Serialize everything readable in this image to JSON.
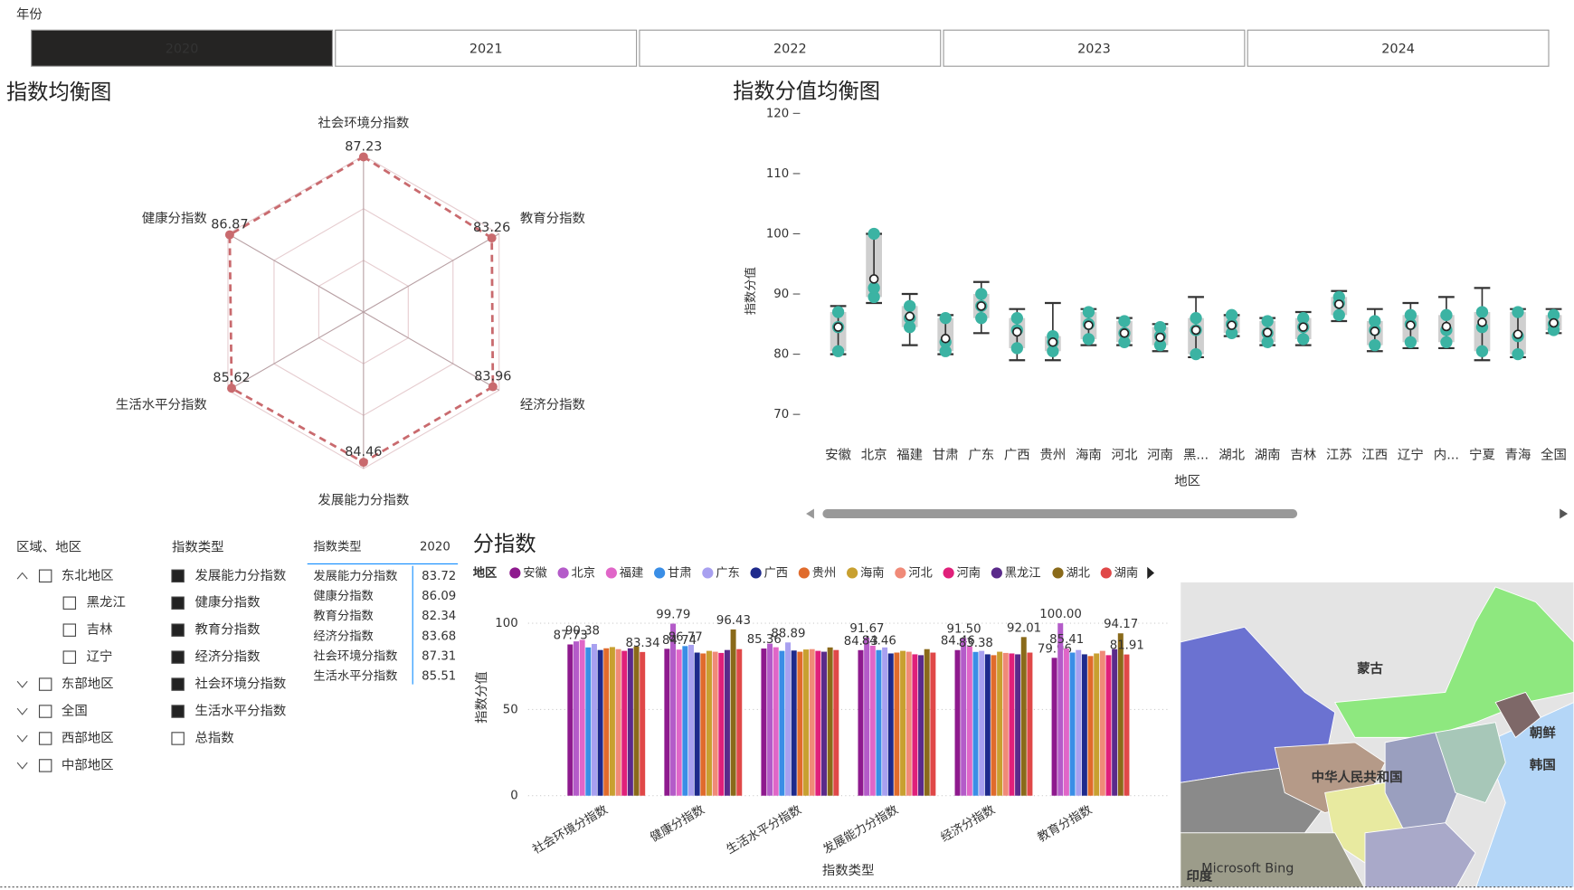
{
  "year_slicer": {
    "label": "年份",
    "options": [
      "2020",
      "2021",
      "2022",
      "2023",
      "2024"
    ]
  },
  "region_filter": {
    "title": "区域、地区",
    "items": [
      {
        "label": "东北地区",
        "expanded": true,
        "children": [
          "黑龙江",
          "吉林",
          "辽宁"
        ]
      },
      {
        "label": "东部地区",
        "expanded": false
      },
      {
        "label": "全国",
        "expanded": false
      },
      {
        "label": "西部地区",
        "expanded": false
      },
      {
        "label": "中部地区",
        "expanded": false
      }
    ]
  },
  "index_filter": {
    "title": "指数类型",
    "items": [
      {
        "label": "发展能力分指数",
        "checked": true
      },
      {
        "label": "健康分指数",
        "checked": true
      },
      {
        "label": "教育分指数",
        "checked": true
      },
      {
        "label": "经济分指数",
        "checked": true
      },
      {
        "label": "社会环境分指数",
        "checked": true
      },
      {
        "label": "生活水平分指数",
        "checked": true
      },
      {
        "label": "总指数",
        "checked": false
      }
    ]
  },
  "table": {
    "headers": [
      "指数类型",
      "2020"
    ],
    "rows": [
      [
        "发展能力分指数",
        83.72
      ],
      [
        "健康分指数",
        86.09
      ],
      [
        "教育分指数",
        82.34
      ],
      [
        "经济分指数",
        83.68
      ],
      [
        "社会环境分指数",
        87.31
      ],
      [
        "生活水平分指数",
        85.51
      ]
    ]
  },
  "map": {
    "labels": [
      "蒙古",
      "朝鲜",
      "韩国",
      "中华人民共和国",
      "印度"
    ],
    "attribution": "Microsoft Bing"
  },
  "chart_data": [
    {
      "type": "radar",
      "title": "指数均衡图",
      "categories": [
        "社会环境分指数",
        "教育分指数",
        "经济分指数",
        "发展能力分指数",
        "生活水平分指数",
        "健康分指数"
      ],
      "values": [
        87.23,
        83.26,
        83.96,
        84.46,
        85.62,
        86.87
      ],
      "color": "#c96a6e",
      "rlim": [
        0,
        88
      ],
      "grid": true
    },
    {
      "type": "box",
      "title": "指数分值均衡图",
      "y_label": "指数分值",
      "x_label": "地区",
      "categories": [
        "安徽",
        "北京",
        "福建",
        "甘肃",
        "广东",
        "广西",
        "贵州",
        "海南",
        "河北",
        "河南",
        "黑...",
        "湖北",
        "湖南",
        "吉林",
        "江苏",
        "江西",
        "辽宁",
        "内...",
        "宁夏",
        "青海",
        "全国"
      ],
      "min": [
        80,
        88.5,
        81.5,
        80,
        83.5,
        79,
        79,
        81.5,
        81.5,
        80.5,
        79.5,
        83,
        81.5,
        81.5,
        85.5,
        80.5,
        81,
        81,
        79,
        79.5,
        83.5
      ],
      "q1": [
        80.5,
        89.5,
        84.5,
        80.5,
        86,
        81,
        80.5,
        82.5,
        82,
        81.5,
        80,
        83.5,
        82,
        82.5,
        86.5,
        81.5,
        82,
        82,
        80.5,
        80,
        84
      ],
      "median": [
        84.5,
        91,
        86,
        82,
        88,
        84,
        82,
        85,
        83.5,
        83,
        84,
        85,
        83.5,
        84.5,
        88.5,
        84,
        85,
        84,
        84.5,
        83,
        85
      ],
      "q3": [
        87,
        100,
        88,
        86,
        90,
        86,
        83,
        87,
        85.5,
        84.5,
        86,
        86.5,
        85.5,
        86,
        89.5,
        85.5,
        86.5,
        86.5,
        87,
        87,
        86.5
      ],
      "max": [
        88,
        100,
        90,
        86.5,
        92,
        87.5,
        88.5,
        87.5,
        86,
        85,
        89.5,
        86.5,
        86,
        87,
        90.5,
        87.5,
        88.5,
        89.5,
        91,
        87.5,
        87.5
      ],
      "mean": [
        84.5,
        92.5,
        86.3,
        82.6,
        88,
        83.7,
        82,
        84.8,
        83.5,
        82.8,
        84,
        84.8,
        83.6,
        84.5,
        88.3,
        83.8,
        84.8,
        84.6,
        85.3,
        83.3,
        85.2
      ],
      "color": "#3bb3a3",
      "ylim": [
        65,
        120
      ],
      "yticks": [
        70,
        80,
        90,
        100,
        110,
        120
      ]
    },
    {
      "type": "bar",
      "title": "分指数",
      "legend_title": "地区",
      "y_label": "指数分值",
      "x_label": "指数类型",
      "categories": [
        "社会环境分指数",
        "健康分指数",
        "生活水平分指数",
        "发展能力分指数",
        "经济分指数",
        "教育分指数"
      ],
      "ylim": [
        0,
        110
      ],
      "yticks": [
        0,
        50,
        100
      ],
      "grid": true,
      "series": [
        {
          "name": "安徽",
          "color": "#8e1a8e",
          "values": [
            87.73,
            85.2,
            85.36,
            84.43,
            84.46,
            79.96
          ],
          "value_labels": [
            "87.73",
            null,
            "85.36",
            "84.43",
            "84.46",
            "79.96"
          ]
        },
        {
          "name": "北京",
          "color": "#b45bc9",
          "values": [
            89.5,
            99.79,
            88.2,
            91.67,
            91.5,
            100
          ],
          "value_labels": [
            null,
            "99.79",
            null,
            "91.67",
            "91.50",
            "100.00"
          ]
        },
        {
          "name": "福建",
          "color": "#e066c8",
          "values": [
            90.38,
            84.74,
            86.1,
            87,
            86.5,
            85.41
          ],
          "value_labels": [
            "90.38",
            "84.74",
            null,
            null,
            null,
            "85.41"
          ]
        },
        {
          "name": "甘肃",
          "color": "#3a8ee6",
          "values": [
            86,
            86.77,
            84,
            84.46,
            83.38,
            83
          ],
          "value_labels": [
            null,
            "86.77",
            null,
            "84.46",
            "83.38",
            null
          ]
        },
        {
          "name": "广东",
          "color": "#a8a0f0",
          "values": [
            88,
            87.5,
            88.89,
            86,
            84,
            84.5
          ],
          "value_labels": [
            null,
            null,
            "88.89",
            null,
            null,
            null
          ]
        },
        {
          "name": "广西",
          "color": "#1e2a8c",
          "values": [
            84.5,
            83,
            84.2,
            82.5,
            82,
            82
          ],
          "value_labels": [
            null,
            null,
            null,
            null,
            null,
            null
          ]
        },
        {
          "name": "贵州",
          "color": "#e06b2c",
          "values": [
            85.5,
            82.5,
            83.5,
            83,
            81.5,
            81
          ],
          "value_labels": [
            null,
            null,
            null,
            null,
            null,
            null
          ]
        },
        {
          "name": "海南",
          "color": "#c8a030",
          "values": [
            86.2,
            84,
            84.8,
            84,
            83.5,
            82.5
          ],
          "value_labels": [
            null,
            null,
            null,
            null,
            null,
            null
          ]
        },
        {
          "name": "河北",
          "color": "#f08a78",
          "values": [
            85,
            83.5,
            85,
            83.5,
            82.8,
            84
          ],
          "value_labels": [
            null,
            null,
            null,
            null,
            null,
            null
          ]
        },
        {
          "name": "河南",
          "color": "#e0207a",
          "values": [
            84,
            82.8,
            84,
            82,
            82.5,
            81.5
          ],
          "value_labels": [
            null,
            null,
            null,
            null,
            null,
            null
          ]
        },
        {
          "name": "黑龙江",
          "color": "#5a2a8a",
          "values": [
            85.5,
            84.5,
            83.5,
            81.5,
            82,
            85
          ],
          "value_labels": [
            null,
            null,
            null,
            null,
            null,
            null
          ]
        },
        {
          "name": "湖北",
          "color": "#8a6a1a",
          "values": [
            86.5,
            96.43,
            86,
            85,
            92.01,
            94.17
          ],
          "value_labels": [
            null,
            "96.43",
            null,
            null,
            "92.01",
            "94.17"
          ]
        },
        {
          "name": "湖南",
          "color": "#e04848",
          "values": [
            83.34,
            85,
            84.5,
            83,
            83,
            81.91
          ],
          "value_labels": [
            "83.34",
            null,
            null,
            null,
            null,
            "81.91"
          ]
        }
      ]
    }
  ]
}
